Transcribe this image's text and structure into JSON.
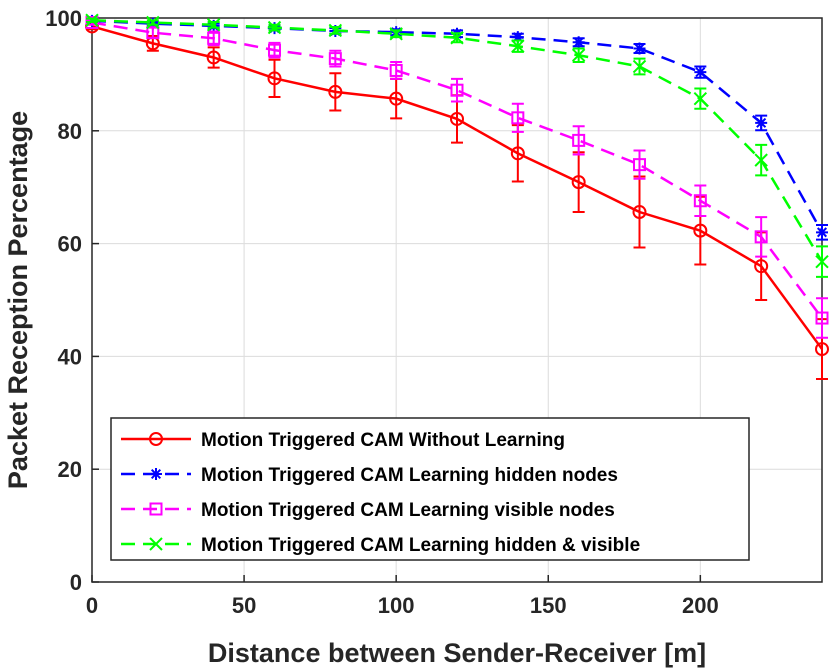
{
  "chart_data": {
    "type": "line",
    "xlabel": "Distance between Sender-Receiver [m]",
    "ylabel": "Packet Reception Percentage",
    "xlim": [
      0,
      240
    ],
    "ylim": [
      0,
      100
    ],
    "xticks": [
      0,
      50,
      100,
      150,
      200
    ],
    "yticks": [
      0,
      20,
      40,
      60,
      80,
      100
    ],
    "grid": true,
    "legend_position": "bottom-left",
    "x": [
      0,
      20,
      40,
      60,
      80,
      100,
      120,
      140,
      160,
      180,
      200,
      220,
      240
    ],
    "series": [
      {
        "name": "Motion Triggered CAM Without Learning",
        "color": "#ff0000",
        "linestyle": "solid",
        "marker": "circle",
        "values": [
          98.5,
          95.5,
          93,
          89.3,
          86.9,
          85.7,
          82.1,
          76,
          70.9,
          65.6,
          62.3,
          56,
          41.3
        ],
        "errors": [
          0.5,
          1.3,
          1.8,
          3.3,
          3.3,
          3.5,
          4.2,
          5,
          5.3,
          6.3,
          6,
          6,
          5.3
        ]
      },
      {
        "name": "Motion Triggered CAM Learning hidden nodes",
        "color": "#0000ff",
        "linestyle": "dashed",
        "marker": "asterisk",
        "values": [
          99.5,
          99,
          98.6,
          98.2,
          97.7,
          97.5,
          97.2,
          96.6,
          95.7,
          94.6,
          90.4,
          81.4,
          62
        ],
        "errors": [
          0.2,
          0.3,
          0.4,
          0.4,
          0.5,
          0.5,
          0.6,
          0.6,
          0.7,
          0.8,
          1,
          1.3,
          1.3
        ]
      },
      {
        "name": "Motion Triggered CAM Learning visible nodes",
        "color": "#ff00ff",
        "linestyle": "dashed",
        "marker": "square",
        "values": [
          99.2,
          97.4,
          96.4,
          94.3,
          92.8,
          90.7,
          87.2,
          82.3,
          78.3,
          74,
          67.6,
          61.2,
          46.8
        ],
        "errors": [
          0.4,
          0.9,
          1.2,
          1.3,
          1.4,
          1.5,
          2,
          2.5,
          2.5,
          2.5,
          2.7,
          3.5,
          3.5
        ]
      },
      {
        "name": "Motion Triggered CAM Learning hidden & visible",
        "color": "#00ff00",
        "linestyle": "dashed",
        "marker": "x",
        "values": [
          99.6,
          99.2,
          98.8,
          98.3,
          97.8,
          97.2,
          96.5,
          95,
          93.4,
          91.4,
          85.7,
          74.8,
          56.8
        ],
        "errors": [
          0.3,
          0.4,
          0.5,
          0.5,
          0.6,
          0.6,
          0.8,
          1,
          1.2,
          1.4,
          1.8,
          2.7,
          2.7
        ]
      }
    ]
  }
}
